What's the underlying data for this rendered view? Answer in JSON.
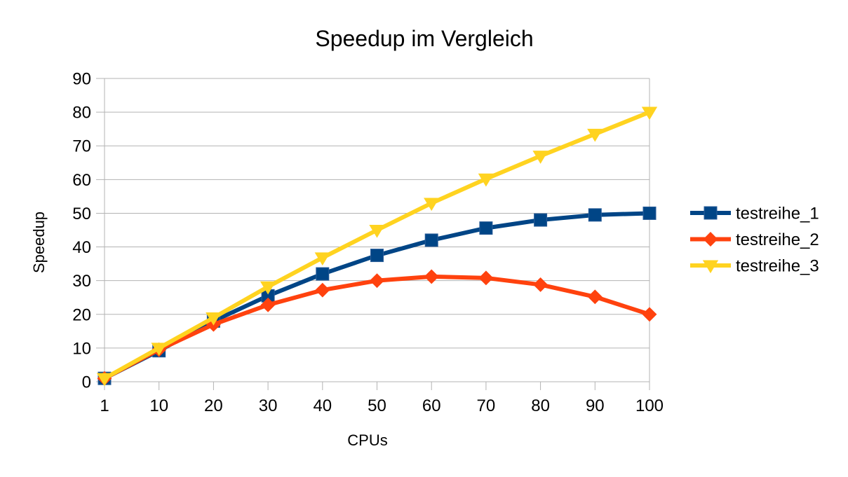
{
  "chart_data": {
    "type": "line",
    "title": "Speedup im Vergleich",
    "xlabel": "CPUs",
    "ylabel": "Speedup",
    "categories": [
      "1",
      "10",
      "20",
      "30",
      "40",
      "50",
      "60",
      "70",
      "80",
      "90",
      "100"
    ],
    "ylim": [
      0,
      90
    ],
    "yticks": [
      0,
      10,
      20,
      30,
      40,
      50,
      60,
      70,
      80,
      90
    ],
    "grid": true,
    "legend_position": "right",
    "series": [
      {
        "name": "testreihe_1",
        "color": "#004586",
        "marker": "square",
        "values": [
          1,
          9.2,
          18,
          25.5,
          32,
          37.5,
          42,
          45.6,
          48,
          49.5,
          50
        ]
      },
      {
        "name": "testreihe_2",
        "color": "#ff420e",
        "marker": "diamond",
        "values": [
          1,
          9.5,
          17,
          22.8,
          27.2,
          30,
          31.2,
          30.8,
          28.8,
          25.2,
          20
        ]
      },
      {
        "name": "testreihe_3",
        "color": "#ffd320",
        "marker": "triangle-down",
        "values": [
          1,
          10,
          19,
          28.2,
          36.8,
          45,
          53,
          60.2,
          67,
          73.5,
          80
        ]
      }
    ]
  }
}
